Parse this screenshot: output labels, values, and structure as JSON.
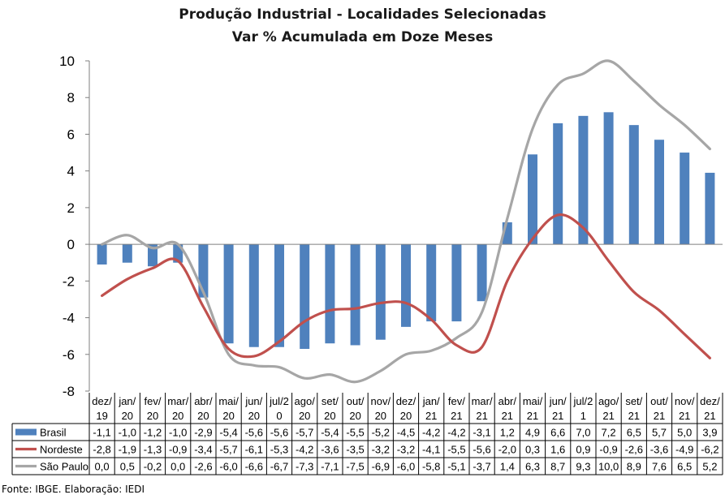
{
  "chart_data": {
    "type": "bar",
    "title": "Produção Industrial - Localidades Selecionadas",
    "subtitle": "Var % Acumulada em Doze Meses",
    "xlabel": "",
    "ylabel": "",
    "ylim": [
      -8,
      10
    ],
    "yticks": [
      10,
      8,
      6,
      4,
      2,
      0,
      -2,
      -4,
      -6,
      -8
    ],
    "grid": false,
    "legend_position": "bottom-table",
    "categories": [
      [
        "dez/",
        "19"
      ],
      [
        "jan/",
        "20"
      ],
      [
        "fev/",
        "20"
      ],
      [
        "mar/",
        "20"
      ],
      [
        "abr/",
        "20"
      ],
      [
        "mai/",
        "20"
      ],
      [
        "jun/",
        "20"
      ],
      [
        "jul/2",
        "0"
      ],
      [
        "ago/",
        "20"
      ],
      [
        "set/",
        "20"
      ],
      [
        "out/",
        "20"
      ],
      [
        "nov/",
        "20"
      ],
      [
        "dez/",
        "20"
      ],
      [
        "jan/",
        "21"
      ],
      [
        "fev/",
        "21"
      ],
      [
        "mar/",
        "21"
      ],
      [
        "abr/",
        "21"
      ],
      [
        "mai/",
        "21"
      ],
      [
        "jun/",
        "21"
      ],
      [
        "jul/2",
        "1"
      ],
      [
        "ago/",
        "21"
      ],
      [
        "set/",
        "21"
      ],
      [
        "out/",
        "21"
      ],
      [
        "nov/",
        "21"
      ],
      [
        "dez/",
        "21"
      ]
    ],
    "series": [
      {
        "name": "Brasil",
        "kind": "bar",
        "color": "#4f81bd",
        "values": [
          -1.1,
          -1.0,
          -1.2,
          -1.0,
          -2.9,
          -5.4,
          -5.6,
          -5.6,
          -5.7,
          -5.4,
          -5.5,
          -5.2,
          -4.5,
          -4.2,
          -4.2,
          -3.1,
          1.2,
          4.9,
          6.6,
          7.0,
          7.2,
          6.5,
          5.7,
          5.0,
          3.9
        ],
        "labels": [
          "-1,1",
          "-1,0",
          "-1,2",
          "-1,0",
          "-2,9",
          "-5,4",
          "-5,6",
          "-5,6",
          "-5,7",
          "-5,4",
          "-5,5",
          "-5,2",
          "-4,5",
          "-4,2",
          "-4,2",
          "-3,1",
          "1,2",
          "4,9",
          "6,6",
          "7,0",
          "7,2",
          "6,5",
          "5,7",
          "5,0",
          "3,9"
        ]
      },
      {
        "name": "Nordeste",
        "kind": "line",
        "color": "#c0504d",
        "values": [
          -2.8,
          -1.9,
          -1.3,
          -0.9,
          -3.4,
          -5.7,
          -6.1,
          -5.3,
          -4.2,
          -3.6,
          -3.5,
          -3.2,
          -3.2,
          -4.1,
          -5.5,
          -5.6,
          -2.0,
          0.3,
          1.6,
          0.9,
          -0.9,
          -2.6,
          -3.6,
          -4.9,
          -6.2
        ],
        "labels": [
          "-2,8",
          "-1,9",
          "-1,3",
          "-0,9",
          "-3,4",
          "-5,7",
          "-6,1",
          "-5,3",
          "-4,2",
          "-3,6",
          "-3,5",
          "-3,2",
          "-3,2",
          "-4,1",
          "-5,5",
          "-5,6",
          "-2,0",
          "0,3",
          "1,6",
          "0,9",
          "-0,9",
          "-2,6",
          "-3,6",
          "-4,9",
          "-6,2"
        ]
      },
      {
        "name": "São Paulo",
        "kind": "line",
        "color": "#a6a6a6",
        "values": [
          0.0,
          0.5,
          -0.2,
          0.0,
          -2.6,
          -6.0,
          -6.6,
          -6.7,
          -7.3,
          -7.1,
          -7.5,
          -6.9,
          -6.0,
          -5.8,
          -5.1,
          -3.7,
          1.4,
          6.3,
          8.7,
          9.3,
          10.0,
          8.9,
          7.6,
          6.5,
          5.2
        ],
        "labels": [
          "0,0",
          "0,5",
          "-0,2",
          "0,0",
          "-2,6",
          "-6,0",
          "-6,6",
          "-6,7",
          "-7,3",
          "-7,1",
          "-7,5",
          "-6,9",
          "-6,0",
          "-5,8",
          "-5,1",
          "-3,7",
          "1,4",
          "6,3",
          "8,7",
          "9,3",
          "10,0",
          "8,9",
          "7,6",
          "6,5",
          "5,2"
        ]
      }
    ]
  },
  "source": "Fonte: IBGE. Elaboração: IEDI"
}
